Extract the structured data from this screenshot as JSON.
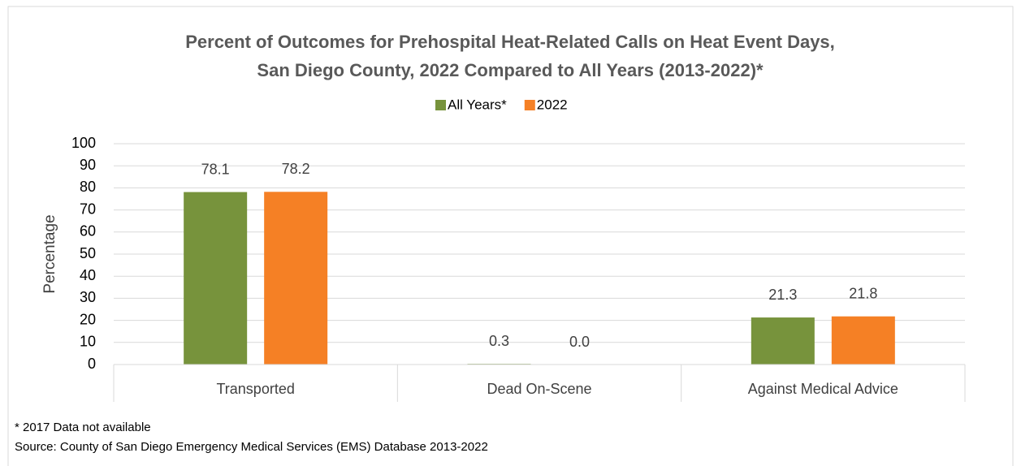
{
  "chart_data": {
    "type": "bar",
    "title": [
      "Percent of Outcomes for Prehospital Heat-Related Calls on Heat Event Days,",
      "San Diego County, 2022 Compared to All Years (2013-2022)*"
    ],
    "y_label": "Percentage",
    "categories": [
      "Transported",
      "Dead On-Scene",
      "Against Medical Advice"
    ],
    "series": [
      {
        "name": "All Years*",
        "color": "#77933c",
        "values": [
          78.1,
          0.3,
          21.3
        ],
        "value_labels": [
          "78.1",
          "0.3",
          "21.3"
        ]
      },
      {
        "name": "2022",
        "color": "#f58025",
        "values": [
          78.2,
          0,
          21.8
        ],
        "value_labels": [
          "78.2",
          "0.0",
          "21.8"
        ]
      }
    ],
    "ylim": [
      0,
      100
    ],
    "yticks": [
      0,
      10,
      20,
      30,
      40,
      50,
      60,
      70,
      80,
      90,
      100
    ],
    "grid": true,
    "legend": "top",
    "notes": [
      "* 2017 Data not available",
      "Source: County of San Diego Emergency Medical Services (EMS) Database 2013-2022"
    ]
  }
}
